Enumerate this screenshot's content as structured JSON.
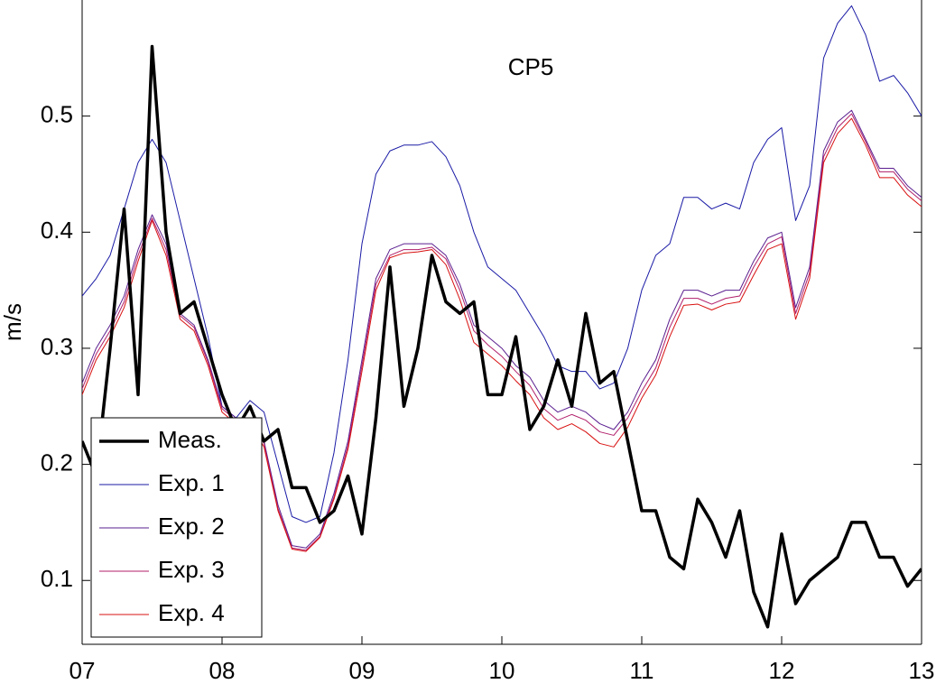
{
  "chart_data": {
    "type": "line",
    "title": "CP5",
    "y_label": "m/s",
    "x": [
      7.0,
      7.1,
      7.2,
      7.3,
      7.4,
      7.5,
      7.6,
      7.7,
      7.8,
      7.9,
      8.0,
      8.1,
      8.2,
      8.3,
      8.4,
      8.5,
      8.6,
      8.7,
      8.8,
      8.9,
      9.0,
      9.1,
      9.2,
      9.3,
      9.4,
      9.5,
      9.6,
      9.7,
      9.8,
      9.9,
      10.0,
      10.1,
      10.2,
      10.3,
      10.4,
      10.5,
      10.6,
      10.7,
      10.8,
      10.9,
      11.0,
      11.1,
      11.2,
      11.3,
      11.4,
      11.5,
      11.6,
      11.7,
      11.8,
      11.9,
      12.0,
      12.1,
      12.2,
      12.3,
      12.4,
      12.5,
      12.6,
      12.7,
      12.8,
      12.9,
      13.0
    ],
    "series": [
      {
        "name": "Meas.",
        "color": "#000000",
        "width": 3.5,
        "values": [
          0.22,
          0.19,
          0.3,
          0.42,
          0.26,
          0.56,
          0.4,
          0.33,
          0.34,
          0.3,
          0.26,
          0.23,
          0.25,
          0.22,
          0.23,
          0.18,
          0.18,
          0.15,
          0.16,
          0.19,
          0.14,
          0.24,
          0.37,
          0.25,
          0.3,
          0.38,
          0.34,
          0.33,
          0.34,
          0.26,
          0.26,
          0.31,
          0.23,
          0.25,
          0.29,
          0.25,
          0.33,
          0.27,
          0.28,
          0.22,
          0.16,
          0.16,
          0.12,
          0.11,
          0.17,
          0.15,
          0.12,
          0.16,
          0.09,
          0.06,
          0.14,
          0.08,
          0.1,
          0.11,
          0.12,
          0.15,
          0.15,
          0.12,
          0.12,
          0.095,
          0.11
        ]
      },
      {
        "name": "Exp. 1",
        "color": "#1a1aa6",
        "width": 1,
        "values": [
          0.345,
          0.36,
          0.38,
          0.42,
          0.46,
          0.48,
          0.46,
          0.41,
          0.36,
          0.31,
          0.25,
          0.24,
          0.255,
          0.245,
          0.2,
          0.155,
          0.15,
          0.155,
          0.21,
          0.29,
          0.39,
          0.45,
          0.47,
          0.475,
          0.475,
          0.478,
          0.465,
          0.44,
          0.4,
          0.37,
          0.36,
          0.35,
          0.33,
          0.31,
          0.285,
          0.28,
          0.28,
          0.265,
          0.27,
          0.3,
          0.35,
          0.38,
          0.39,
          0.43,
          0.43,
          0.42,
          0.425,
          0.42,
          0.46,
          0.48,
          0.49,
          0.41,
          0.44,
          0.55,
          0.58,
          0.595,
          0.57,
          0.53,
          0.535,
          0.52,
          0.5
        ]
      },
      {
        "name": "Exp. 2",
        "color": "#5a1f8f",
        "width": 1,
        "values": [
          0.27,
          0.3,
          0.32,
          0.345,
          0.385,
          0.415,
          0.39,
          0.33,
          0.32,
          0.29,
          0.25,
          0.24,
          0.24,
          0.22,
          0.165,
          0.13,
          0.128,
          0.14,
          0.175,
          0.22,
          0.29,
          0.36,
          0.385,
          0.39,
          0.39,
          0.39,
          0.38,
          0.355,
          0.32,
          0.31,
          0.3,
          0.285,
          0.275,
          0.255,
          0.245,
          0.25,
          0.245,
          0.235,
          0.23,
          0.245,
          0.27,
          0.29,
          0.325,
          0.35,
          0.35,
          0.345,
          0.35,
          0.35,
          0.375,
          0.395,
          0.4,
          0.335,
          0.37,
          0.47,
          0.495,
          0.505,
          0.48,
          0.455,
          0.455,
          0.44,
          0.43
        ]
      },
      {
        "name": "Exp. 3",
        "color": "#b01f6a",
        "width": 1,
        "values": [
          0.265,
          0.295,
          0.315,
          0.34,
          0.38,
          0.412,
          0.385,
          0.328,
          0.318,
          0.288,
          0.248,
          0.238,
          0.238,
          0.218,
          0.162,
          0.128,
          0.126,
          0.138,
          0.172,
          0.216,
          0.285,
          0.355,
          0.38,
          0.385,
          0.385,
          0.387,
          0.377,
          0.35,
          0.315,
          0.303,
          0.293,
          0.28,
          0.268,
          0.248,
          0.238,
          0.243,
          0.238,
          0.228,
          0.225,
          0.24,
          0.263,
          0.283,
          0.318,
          0.343,
          0.343,
          0.338,
          0.343,
          0.345,
          0.37,
          0.39,
          0.396,
          0.33,
          0.365,
          0.465,
          0.49,
          0.502,
          0.478,
          0.452,
          0.452,
          0.437,
          0.427
        ]
      },
      {
        "name": "Exp. 4",
        "color": "#d81010",
        "width": 1,
        "values": [
          0.26,
          0.29,
          0.31,
          0.335,
          0.375,
          0.41,
          0.38,
          0.325,
          0.315,
          0.285,
          0.245,
          0.235,
          0.235,
          0.215,
          0.16,
          0.127,
          0.125,
          0.137,
          0.17,
          0.213,
          0.28,
          0.35,
          0.378,
          0.382,
          0.383,
          0.385,
          0.372,
          0.342,
          0.305,
          0.295,
          0.285,
          0.272,
          0.26,
          0.24,
          0.23,
          0.235,
          0.228,
          0.218,
          0.215,
          0.232,
          0.257,
          0.277,
          0.31,
          0.337,
          0.338,
          0.333,
          0.338,
          0.34,
          0.363,
          0.385,
          0.39,
          0.325,
          0.36,
          0.46,
          0.485,
          0.498,
          0.475,
          0.447,
          0.447,
          0.432,
          0.422
        ]
      }
    ],
    "xlim": [
      7,
      13
    ],
    "xticks": [
      {
        "value": 7,
        "label": "07"
      },
      {
        "value": 8,
        "label": "08"
      },
      {
        "value": 9,
        "label": "09"
      },
      {
        "value": 10,
        "label": "10"
      },
      {
        "value": 11,
        "label": "11"
      },
      {
        "value": 12,
        "label": "12"
      },
      {
        "value": 13,
        "label": "13"
      }
    ],
    "ylim": [
      0.045,
      0.6
    ],
    "yticks": [
      0.1,
      0.2,
      0.3,
      0.4,
      0.5
    ],
    "grid": false,
    "legend": "lower left"
  }
}
